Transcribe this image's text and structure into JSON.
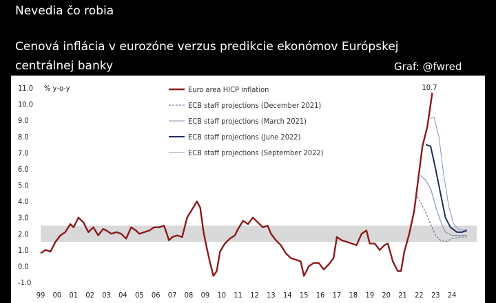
{
  "header": {
    "line1": "Nevedia čo robia",
    "title_line1": "Cenová inflácia v eurozóne verzus predikcie ekonómov Európskej",
    "title_line2": "centrálnej banky",
    "credit": "Graf: @fwred"
  },
  "colors": {
    "hicp": "#8b1a1a",
    "dec2021": "#5b6d9a",
    "mar2021": "#7f8fb0",
    "jun2022": "#1f2f5c",
    "sep2022": "#8a9bc0",
    "band": "#d9d9d9"
  },
  "chart_data": {
    "type": "line",
    "title": "",
    "ylabel": "% y-o-y",
    "xlabel": "",
    "ylim": [
      -1.0,
      11.0
    ],
    "xlim": [
      1999.0,
      2025.5
    ],
    "yticks": [
      11.0,
      10.0,
      9.0,
      8.0,
      7.0,
      6.0,
      5.0,
      4.0,
      3.0,
      2.0,
      1.0,
      0.0,
      -1.0
    ],
    "ytick_labels": [
      "11.0",
      "10.0",
      "9.0",
      "8.0",
      "7.0",
      "6.0",
      "5.0",
      "4.0",
      "3.0",
      "2.0",
      "1.0",
      "0.0",
      "-1.0"
    ],
    "xtick_labels": [
      "99",
      "00",
      "01",
      "02",
      "03",
      "04",
      "05",
      "06",
      "07",
      "08",
      "09",
      "10",
      "11",
      "12",
      "13",
      "14",
      "15",
      "16",
      "17",
      "18",
      "19",
      "20",
      "21",
      "22",
      "23",
      "24"
    ],
    "band": [
      1.5,
      2.5
    ],
    "annotation": {
      "text": "10.7",
      "x": 2022.8,
      "y": 10.7
    },
    "series": [
      {
        "name": "Euro area HICP inflation",
        "style": "solid-thick",
        "color_key": "hicp",
        "points": [
          [
            1999.0,
            0.8
          ],
          [
            1999.3,
            1.0
          ],
          [
            1999.6,
            0.9
          ],
          [
            1999.9,
            1.5
          ],
          [
            2000.2,
            1.9
          ],
          [
            2000.5,
            2.1
          ],
          [
            2000.8,
            2.6
          ],
          [
            2001.0,
            2.4
          ],
          [
            2001.3,
            3.0
          ],
          [
            2001.6,
            2.7
          ],
          [
            2001.9,
            2.1
          ],
          [
            2002.2,
            2.4
          ],
          [
            2002.5,
            1.9
          ],
          [
            2002.8,
            2.3
          ],
          [
            2003.0,
            2.2
          ],
          [
            2003.3,
            2.0
          ],
          [
            2003.6,
            2.1
          ],
          [
            2003.9,
            2.0
          ],
          [
            2004.2,
            1.7
          ],
          [
            2004.5,
            2.4
          ],
          [
            2004.8,
            2.2
          ],
          [
            2005.0,
            2.0
          ],
          [
            2005.3,
            2.1
          ],
          [
            2005.6,
            2.2
          ],
          [
            2005.9,
            2.4
          ],
          [
            2006.2,
            2.4
          ],
          [
            2006.5,
            2.5
          ],
          [
            2006.8,
            1.6
          ],
          [
            2007.0,
            1.8
          ],
          [
            2007.3,
            1.9
          ],
          [
            2007.6,
            1.8
          ],
          [
            2007.9,
            3.0
          ],
          [
            2008.2,
            3.5
          ],
          [
            2008.5,
            4.0
          ],
          [
            2008.7,
            3.6
          ],
          [
            2008.9,
            2.1
          ],
          [
            2009.1,
            1.1
          ],
          [
            2009.3,
            0.2
          ],
          [
            2009.5,
            -0.6
          ],
          [
            2009.7,
            -0.3
          ],
          [
            2009.9,
            0.9
          ],
          [
            2010.2,
            1.4
          ],
          [
            2010.5,
            1.7
          ],
          [
            2010.8,
            1.9
          ],
          [
            2011.0,
            2.3
          ],
          [
            2011.3,
            2.8
          ],
          [
            2011.6,
            2.6
          ],
          [
            2011.9,
            3.0
          ],
          [
            2012.2,
            2.7
          ],
          [
            2012.5,
            2.4
          ],
          [
            2012.8,
            2.5
          ],
          [
            2013.0,
            2.0
          ],
          [
            2013.3,
            1.6
          ],
          [
            2013.6,
            1.3
          ],
          [
            2013.9,
            0.8
          ],
          [
            2014.2,
            0.5
          ],
          [
            2014.5,
            0.4
          ],
          [
            2014.8,
            0.3
          ],
          [
            2015.0,
            -0.6
          ],
          [
            2015.3,
            0.0
          ],
          [
            2015.6,
            0.2
          ],
          [
            2015.9,
            0.2
          ],
          [
            2016.2,
            -0.2
          ],
          [
            2016.5,
            0.1
          ],
          [
            2016.8,
            0.5
          ],
          [
            2017.0,
            1.8
          ],
          [
            2017.3,
            1.6
          ],
          [
            2017.6,
            1.5
          ],
          [
            2017.9,
            1.4
          ],
          [
            2018.2,
            1.3
          ],
          [
            2018.5,
            2.0
          ],
          [
            2018.8,
            2.2
          ],
          [
            2019.0,
            1.4
          ],
          [
            2019.3,
            1.4
          ],
          [
            2019.6,
            1.0
          ],
          [
            2019.9,
            1.3
          ],
          [
            2020.1,
            1.4
          ],
          [
            2020.4,
            0.3
          ],
          [
            2020.7,
            -0.3
          ],
          [
            2020.9,
            -0.3
          ],
          [
            2021.1,
            0.9
          ],
          [
            2021.4,
            2.0
          ],
          [
            2021.7,
            3.4
          ],
          [
            2021.9,
            5.0
          ],
          [
            2022.2,
            7.4
          ],
          [
            2022.5,
            8.6
          ],
          [
            2022.8,
            10.7
          ]
        ]
      },
      {
        "name": "ECB staff projections (December 2021)",
        "style": "dashed",
        "color_key": "dec2021",
        "points": [
          [
            2021.9,
            4.3
          ],
          [
            2022.1,
            3.9
          ],
          [
            2022.4,
            3.3
          ],
          [
            2022.7,
            2.6
          ],
          [
            2023.0,
            1.9
          ],
          [
            2023.3,
            1.6
          ],
          [
            2023.6,
            1.5
          ],
          [
            2024.0,
            1.7
          ],
          [
            2024.5,
            1.8
          ],
          [
            2024.9,
            1.8
          ]
        ]
      },
      {
        "name": "ECB staff projections (March 2021)",
        "style": "thin",
        "color_key": "mar2021",
        "points": [
          [
            2022.1,
            5.6
          ],
          [
            2022.4,
            5.3
          ],
          [
            2022.7,
            4.8
          ],
          [
            2023.0,
            3.7
          ],
          [
            2023.3,
            2.8
          ],
          [
            2023.6,
            2.1
          ],
          [
            2024.0,
            1.9
          ],
          [
            2024.5,
            1.9
          ],
          [
            2024.9,
            1.9
          ]
        ]
      },
      {
        "name": "ECB staff projections (June 2022)",
        "style": "solid-medium",
        "color_key": "jun2022",
        "points": [
          [
            2022.4,
            7.5
          ],
          [
            2022.7,
            7.4
          ],
          [
            2023.0,
            6.0
          ],
          [
            2023.3,
            4.5
          ],
          [
            2023.6,
            3.0
          ],
          [
            2023.9,
            2.4
          ],
          [
            2024.3,
            2.1
          ],
          [
            2024.6,
            2.1
          ],
          [
            2024.9,
            2.2
          ]
        ]
      },
      {
        "name": "ECB staff projections (September 2022)",
        "style": "thin",
        "color_key": "sep2022",
        "points": [
          [
            2022.7,
            9.1
          ],
          [
            2022.9,
            9.2
          ],
          [
            2023.2,
            8.0
          ],
          [
            2023.5,
            5.6
          ],
          [
            2023.8,
            3.7
          ],
          [
            2024.1,
            2.6
          ],
          [
            2024.4,
            2.3
          ],
          [
            2024.7,
            2.2
          ],
          [
            2024.9,
            2.3
          ]
        ]
      }
    ]
  }
}
